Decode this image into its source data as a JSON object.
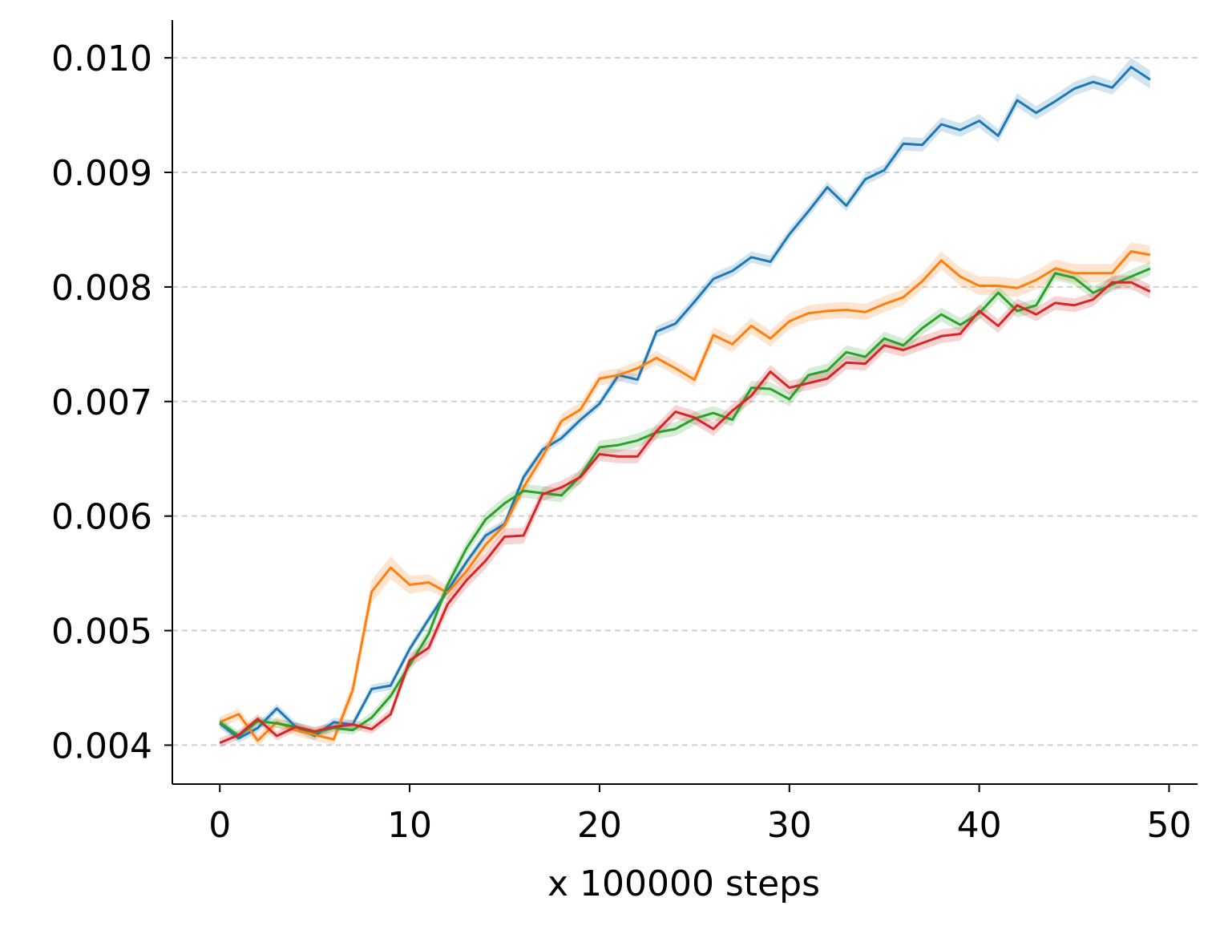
{
  "chart_data": {
    "type": "line",
    "title": "",
    "xlabel": "x 100000 steps",
    "ylabel": "",
    "xlim": [
      -2.5,
      51.5
    ],
    "ylim": [
      0.00366,
      0.01033
    ],
    "xticks": [
      0,
      10,
      20,
      30,
      40,
      50
    ],
    "xtick_labels": [
      "0",
      "10",
      "20",
      "30",
      "40",
      "50"
    ],
    "yticks": [
      0.004,
      0.005,
      0.006,
      0.007,
      0.008,
      0.009,
      0.01
    ],
    "ytick_labels": [
      "0.004",
      "0.005",
      "0.006",
      "0.007",
      "0.008",
      "0.009",
      "0.010"
    ],
    "grid": "horizontal dashed",
    "legend": "none",
    "x": [
      0,
      1,
      2,
      3,
      4,
      5,
      6,
      7,
      8,
      9,
      10,
      11,
      12,
      13,
      14,
      15,
      16,
      17,
      18,
      19,
      20,
      21,
      22,
      23,
      24,
      25,
      26,
      27,
      28,
      29,
      30,
      31,
      32,
      33,
      34,
      35,
      36,
      37,
      38,
      39,
      40,
      41,
      42,
      43,
      44,
      45,
      46,
      47,
      48,
      49
    ],
    "series": [
      {
        "color": "#1f77b4",
        "values": [
          0.00419,
          0.00406,
          0.00415,
          0.00432,
          0.00416,
          0.00408,
          0.0042,
          0.00418,
          0.00449,
          0.00452,
          0.00484,
          0.0051,
          0.00535,
          0.0056,
          0.00583,
          0.00593,
          0.00634,
          0.00658,
          0.00668,
          0.00684,
          0.00698,
          0.00723,
          0.00719,
          0.00761,
          0.00768,
          0.00787,
          0.00807,
          0.00814,
          0.00826,
          0.00822,
          0.00846,
          0.00866,
          0.00887,
          0.00871,
          0.00894,
          0.00902,
          0.00925,
          0.00924,
          0.00942,
          0.00937,
          0.00945,
          0.00932,
          0.00963,
          0.00952,
          0.00962,
          0.00973,
          0.00979,
          0.00974,
          0.00992,
          0.00981
        ],
        "band": [
          4e-05,
          4e-05,
          4e-05,
          4e-05,
          4e-05,
          4e-05,
          4e-05,
          4e-05,
          4e-05,
          4e-05,
          4e-05,
          4e-05,
          4e-05,
          4e-05,
          4e-05,
          4e-05,
          4e-05,
          4e-05,
          4e-05,
          4e-05,
          4e-05,
          5e-05,
          5e-05,
          5e-05,
          5e-05,
          5e-05,
          5e-05,
          5e-05,
          5e-05,
          5e-05,
          5e-05,
          5e-05,
          5e-05,
          5e-05,
          5e-05,
          5e-05,
          6e-05,
          6e-05,
          6e-05,
          6e-05,
          6e-05,
          6e-05,
          6e-05,
          6e-05,
          6e-05,
          6e-05,
          6e-05,
          6e-05,
          8e-05,
          8e-05
        ]
      },
      {
        "color": "#ff7f0e",
        "values": [
          0.0042,
          0.00427,
          0.00404,
          0.0042,
          0.00413,
          0.00409,
          0.00405,
          0.00448,
          0.00534,
          0.00555,
          0.0054,
          0.00542,
          0.00533,
          0.00552,
          0.00575,
          0.00592,
          0.00625,
          0.00652,
          0.00683,
          0.00693,
          0.0072,
          0.00723,
          0.00729,
          0.00738,
          0.00729,
          0.00719,
          0.00758,
          0.0075,
          0.00766,
          0.00755,
          0.0077,
          0.00777,
          0.00779,
          0.0078,
          0.00778,
          0.00785,
          0.00791,
          0.00805,
          0.00823,
          0.00809,
          0.00801,
          0.00801,
          0.00799,
          0.00806,
          0.00816,
          0.00812,
          0.00812,
          0.00812,
          0.00831,
          0.00828
        ],
        "band": [
          5e-05,
          5e-05,
          5e-05,
          5e-05,
          5e-05,
          5e-05,
          5e-05,
          8e-05,
          0.0001,
          0.0001,
          8e-05,
          7e-05,
          6e-05,
          6e-05,
          6e-05,
          6e-05,
          6e-05,
          6e-05,
          6e-05,
          6e-05,
          6e-05,
          6e-05,
          6e-05,
          6e-05,
          6e-05,
          6e-05,
          7e-05,
          7e-05,
          7e-05,
          7e-05,
          7e-05,
          7e-05,
          7e-05,
          7e-05,
          7e-05,
          7e-05,
          7e-05,
          7e-05,
          8e-05,
          8e-05,
          8e-05,
          8e-05,
          8e-05,
          8e-05,
          8e-05,
          8e-05,
          8e-05,
          8e-05,
          8e-05,
          8e-05
        ]
      },
      {
        "color": "#2ca02c",
        "values": [
          0.0042,
          0.00408,
          0.00421,
          0.00419,
          0.00416,
          0.00411,
          0.00415,
          0.00413,
          0.00424,
          0.00443,
          0.0047,
          0.00497,
          0.0054,
          0.00572,
          0.00597,
          0.00611,
          0.00622,
          0.0062,
          0.00618,
          0.00635,
          0.0066,
          0.00662,
          0.00666,
          0.00673,
          0.00676,
          0.00685,
          0.0069,
          0.00684,
          0.00712,
          0.00711,
          0.00702,
          0.00723,
          0.00727,
          0.00743,
          0.00739,
          0.00755,
          0.00749,
          0.00764,
          0.00776,
          0.00767,
          0.00777,
          0.00795,
          0.00779,
          0.00784,
          0.00812,
          0.00808,
          0.00795,
          0.00802,
          0.00809,
          0.00816
        ],
        "band": [
          4e-05,
          4e-05,
          4e-05,
          4e-05,
          4e-05,
          4e-05,
          4e-05,
          4e-05,
          5e-05,
          5e-05,
          6e-05,
          6e-05,
          6e-05,
          6e-05,
          6e-05,
          6e-05,
          6e-05,
          6e-05,
          6e-05,
          6e-05,
          6e-05,
          6e-05,
          6e-05,
          6e-05,
          6e-05,
          6e-05,
          6e-05,
          6e-05,
          6e-05,
          6e-05,
          6e-05,
          6e-05,
          6e-05,
          6e-05,
          6e-05,
          6e-05,
          6e-05,
          6e-05,
          6e-05,
          6e-05,
          6e-05,
          6e-05,
          6e-05,
          6e-05,
          6e-05,
          6e-05,
          6e-05,
          6e-05,
          6e-05,
          6e-05
        ]
      },
      {
        "color": "#d62728",
        "values": [
          0.00402,
          0.00409,
          0.00423,
          0.00408,
          0.00416,
          0.00412,
          0.00416,
          0.00418,
          0.00414,
          0.00427,
          0.00474,
          0.00485,
          0.00523,
          0.00544,
          0.00561,
          0.00582,
          0.00583,
          0.00619,
          0.00625,
          0.00634,
          0.00654,
          0.00652,
          0.00652,
          0.00674,
          0.00691,
          0.00686,
          0.00676,
          0.00692,
          0.00705,
          0.00726,
          0.00712,
          0.00716,
          0.0072,
          0.00734,
          0.00733,
          0.00749,
          0.00745,
          0.00751,
          0.00757,
          0.00759,
          0.00779,
          0.00766,
          0.00784,
          0.00776,
          0.00786,
          0.00784,
          0.00789,
          0.00804,
          0.00804,
          0.00796
        ],
        "band": [
          4e-05,
          4e-05,
          4e-05,
          4e-05,
          4e-05,
          4e-05,
          4e-05,
          4e-05,
          4e-05,
          5e-05,
          6e-05,
          6e-05,
          7e-05,
          7e-05,
          7e-05,
          7e-05,
          7e-05,
          6e-05,
          6e-05,
          6e-05,
          6e-05,
          6e-05,
          6e-05,
          6e-05,
          6e-05,
          6e-05,
          6e-05,
          6e-05,
          6e-05,
          6e-05,
          6e-05,
          6e-05,
          6e-05,
          6e-05,
          6e-05,
          6e-05,
          6e-05,
          6e-05,
          6e-05,
          6e-05,
          6e-05,
          6e-05,
          6e-05,
          6e-05,
          6e-05,
          6e-05,
          6e-05,
          6e-05,
          6e-05,
          6e-05
        ]
      }
    ]
  }
}
